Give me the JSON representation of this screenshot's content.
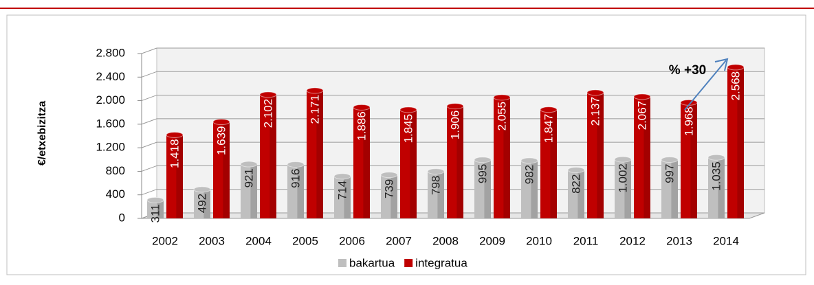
{
  "chart_data": {
    "type": "bar3d",
    "y_label": "€/etxebizitza",
    "annotation": "% +30",
    "categories": [
      "2002",
      "2003",
      "2004",
      "2005",
      "2006",
      "2007",
      "2008",
      "2009",
      "2010",
      "2011",
      "2012",
      "2013",
      "2014"
    ],
    "series": [
      {
        "name": "bakartua",
        "color": "#bfbfbf",
        "values": [
          311,
          492,
          921,
          916,
          714,
          739,
          798,
          995,
          982,
          822,
          1002,
          997,
          1035
        ],
        "value_labels": [
          "311",
          "492",
          "921",
          "916",
          "714",
          "739",
          "798",
          "995",
          "982",
          "822",
          "1.002",
          "997",
          "1.035"
        ]
      },
      {
        "name": "integratua",
        "color": "#c00000",
        "values": [
          1418,
          1639,
          2102,
          2171,
          1886,
          1845,
          1906,
          2055,
          1847,
          2137,
          2067,
          1968,
          2568
        ],
        "value_labels": [
          "1.418",
          "1.639",
          "2.102",
          "2.171",
          "1.886",
          "1.845",
          "1.906",
          "2.055",
          "1.847",
          "2.137",
          "2.067",
          "1.968",
          "2.568"
        ]
      }
    ],
    "ylim": [
      0,
      2800
    ],
    "yticks": [
      0,
      400,
      800,
      {
        "value": 1200,
        "label": "1.200"
      },
      {
        "value": 1600,
        "label": "1.600"
      },
      {
        "value": 2000,
        "label": "2.000"
      },
      {
        "value": 2400,
        "label": "2.400"
      },
      {
        "value": 2800,
        "label": "2.800"
      }
    ],
    "grid": true
  }
}
